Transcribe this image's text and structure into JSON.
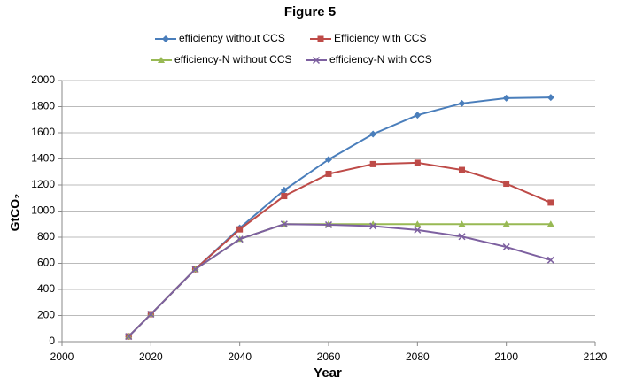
{
  "chart_data": {
    "type": "line",
    "title": "Figure 5",
    "xlabel": "Year",
    "ylabel": "GtCO₂",
    "x": [
      2015,
      2020,
      2030,
      2040,
      2050,
      2060,
      2070,
      2080,
      2090,
      2100,
      2110
    ],
    "series": [
      {
        "name": "efficiency without CCS",
        "color": "#4a7ebb",
        "marker": "diamond",
        "values": [
          40,
          210,
          555,
          870,
          1160,
          1395,
          1590,
          1735,
          1825,
          1865,
          1870
        ]
      },
      {
        "name": "Efficiency with CCS",
        "color": "#be4b48",
        "marker": "square",
        "values": [
          40,
          210,
          555,
          860,
          1115,
          1285,
          1360,
          1370,
          1315,
          1210,
          1065
        ]
      },
      {
        "name": "efficiency-N without CCS",
        "color": "#98b954",
        "marker": "triangle",
        "values": [
          40,
          210,
          555,
          785,
          900,
          900,
          900,
          900,
          900,
          900,
          900
        ]
      },
      {
        "name": "efficiency-N with CCS",
        "color": "#7d60a0",
        "marker": "x",
        "values": [
          40,
          210,
          555,
          785,
          900,
          895,
          885,
          855,
          805,
          725,
          625
        ]
      }
    ],
    "xlim": [
      2000,
      2120
    ],
    "xticks": [
      2000,
      2020,
      2040,
      2060,
      2080,
      2100,
      2120
    ],
    "ylim": [
      0,
      2000
    ],
    "yticks": [
      0,
      200,
      400,
      600,
      800,
      1000,
      1200,
      1400,
      1600,
      1800,
      2000
    ],
    "grid": true
  }
}
